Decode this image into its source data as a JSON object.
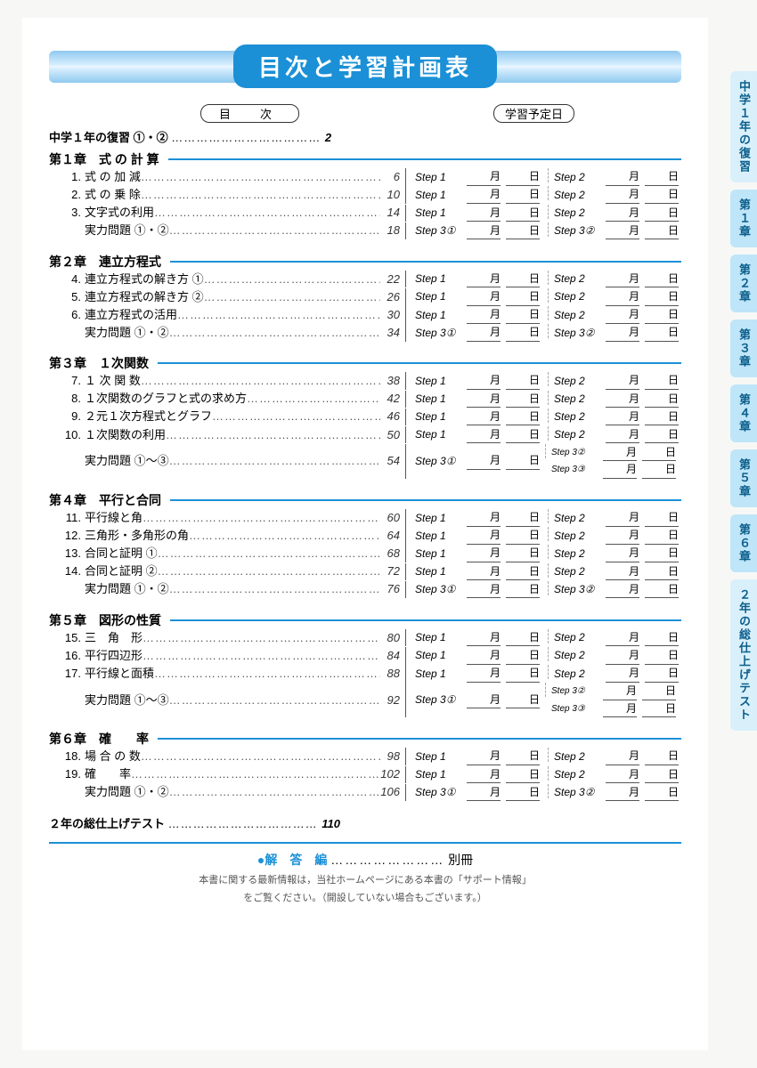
{
  "title": "目次と学習計画表",
  "label_toc": "目　次",
  "label_plan": "学習予定日",
  "intro": {
    "text": "中学１年の復習 ①・②",
    "page": "2"
  },
  "answers": {
    "lead": "●解　答　編",
    "dots": "……………………",
    "tail": "別冊"
  },
  "note1": "本書に関する最新情報は，当社ホームページにある本書の「サポート情報」",
  "note2": "をご覧ください。（開設していない場合もございます。）",
  "month": "月",
  "day": "日",
  "chapters": [
    {
      "head": "第１章　式 の 計 算",
      "items": [
        {
          "n": "1.",
          "t": "式 の 加 減",
          "p": "6",
          "s1": "Step 1",
          "s2": "Step 2"
        },
        {
          "n": "2.",
          "t": "式 の 乗 除",
          "p": "10",
          "s1": "Step 1",
          "s2": "Step 2"
        },
        {
          "n": "3.",
          "t": "文字式の利用",
          "p": "14",
          "s1": "Step 1",
          "s2": "Step 2"
        },
        {
          "n": "",
          "t": "実力問題 ①・②",
          "p": "18",
          "s1": "Step 3①",
          "s2": "Step 3②"
        }
      ]
    },
    {
      "head": "第２章　連立方程式",
      "items": [
        {
          "n": "4.",
          "t": "連立方程式の解き方 ①",
          "p": "22",
          "s1": "Step 1",
          "s2": "Step 2"
        },
        {
          "n": "5.",
          "t": "連立方程式の解き方 ②",
          "p": "26",
          "s1": "Step 1",
          "s2": "Step 2"
        },
        {
          "n": "6.",
          "t": "連立方程式の活用",
          "p": "30",
          "s1": "Step 1",
          "s2": "Step 2"
        },
        {
          "n": "",
          "t": "実力問題 ①・②",
          "p": "34",
          "s1": "Step 3①",
          "s2": "Step 3②"
        }
      ]
    },
    {
      "head": "第３章　１次関数",
      "items": [
        {
          "n": "7.",
          "t": "１ 次 関 数",
          "p": "38",
          "s1": "Step 1",
          "s2": "Step 2"
        },
        {
          "n": "8.",
          "t": "１次関数のグラフと式の求め方",
          "p": "42",
          "s1": "Step 1",
          "s2": "Step 2"
        },
        {
          "n": "9.",
          "t": "２元１次方程式とグラフ",
          "p": "46",
          "s1": "Step 1",
          "s2": "Step 2"
        },
        {
          "n": "10.",
          "t": "１次関数の利用",
          "p": "50",
          "s1": "Step 1",
          "s2": "Step 2"
        },
        {
          "n": "",
          "t": "実力問題 ①～③",
          "p": "54",
          "s1": "Step 3①",
          "s2": "Step 3②",
          "s3": "Step 3③"
        }
      ]
    },
    {
      "head": "第４章　平行と合同",
      "items": [
        {
          "n": "11.",
          "t": "平行線と角",
          "p": "60",
          "s1": "Step 1",
          "s2": "Step 2"
        },
        {
          "n": "12.",
          "t": "三角形・多角形の角",
          "p": "64",
          "s1": "Step 1",
          "s2": "Step 2"
        },
        {
          "n": "13.",
          "t": "合同と証明 ①",
          "p": "68",
          "s1": "Step 1",
          "s2": "Step 2"
        },
        {
          "n": "14.",
          "t": "合同と証明 ②",
          "p": "72",
          "s1": "Step 1",
          "s2": "Step 2"
        },
        {
          "n": "",
          "t": "実力問題 ①・②",
          "p": "76",
          "s1": "Step 3①",
          "s2": "Step 3②"
        }
      ]
    },
    {
      "head": "第５章　図形の性質",
      "items": [
        {
          "n": "15.",
          "t": "三　角　形",
          "p": "80",
          "s1": "Step 1",
          "s2": "Step 2"
        },
        {
          "n": "16.",
          "t": "平行四辺形",
          "p": "84",
          "s1": "Step 1",
          "s2": "Step 2"
        },
        {
          "n": "17.",
          "t": "平行線と面積",
          "p": "88",
          "s1": "Step 1",
          "s2": "Step 2"
        },
        {
          "n": "",
          "t": "実力問題 ①～③",
          "p": "92",
          "s1": "Step 3①",
          "s2": "Step 3②",
          "s3": "Step 3③"
        }
      ]
    },
    {
      "head": "第６章　確　　率",
      "items": [
        {
          "n": "18.",
          "t": "場 合 の 数",
          "p": "98",
          "s1": "Step 1",
          "s2": "Step 2"
        },
        {
          "n": "19.",
          "t": "確　　率",
          "p": "102",
          "s1": "Step 1",
          "s2": "Step 2"
        },
        {
          "n": "",
          "t": "実力問題 ①・②",
          "p": "106",
          "s1": "Step 3①",
          "s2": "Step 3②"
        }
      ]
    }
  ],
  "final": {
    "text": "２年の総仕上げテスト",
    "page": "110"
  },
  "tabs": [
    "中学１年の復習",
    "第１章",
    "第２章",
    "第３章",
    "第４章",
    "第５章",
    "第６章",
    "２年の総仕上げテスト"
  ]
}
